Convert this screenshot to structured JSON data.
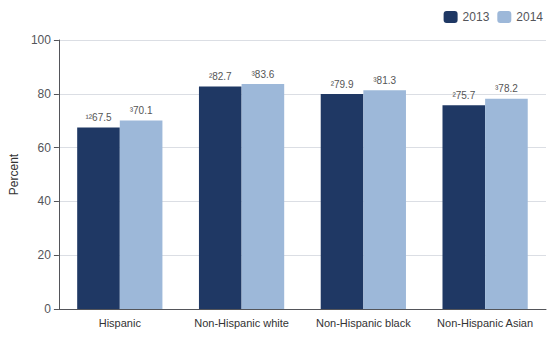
{
  "chart_data": {
    "type": "bar",
    "categories": [
      "Hispanic",
      "Non-Hispanic white",
      "Non-Hispanic black",
      "Non-Hispanic Asian"
    ],
    "series": [
      {
        "name": "2013",
        "color": "#1F3864",
        "values": [
          67.5,
          82.7,
          79.9,
          75.7
        ],
        "value_labels": [
          "¹²67.5",
          "²82.7",
          "²79.9",
          "²75.7"
        ]
      },
      {
        "name": "2014",
        "color": "#9DB8D9",
        "values": [
          70.1,
          83.6,
          81.3,
          78.2
        ],
        "value_labels": [
          "³70.1",
          "³83.6",
          "³81.3",
          "³78.2"
        ]
      }
    ],
    "ylabel": "Percent",
    "ylim": [
      0,
      100
    ],
    "yticks": [
      0,
      20,
      40,
      60,
      80,
      100
    ],
    "grid": true,
    "legend": "upper right",
    "data_labels": true
  }
}
